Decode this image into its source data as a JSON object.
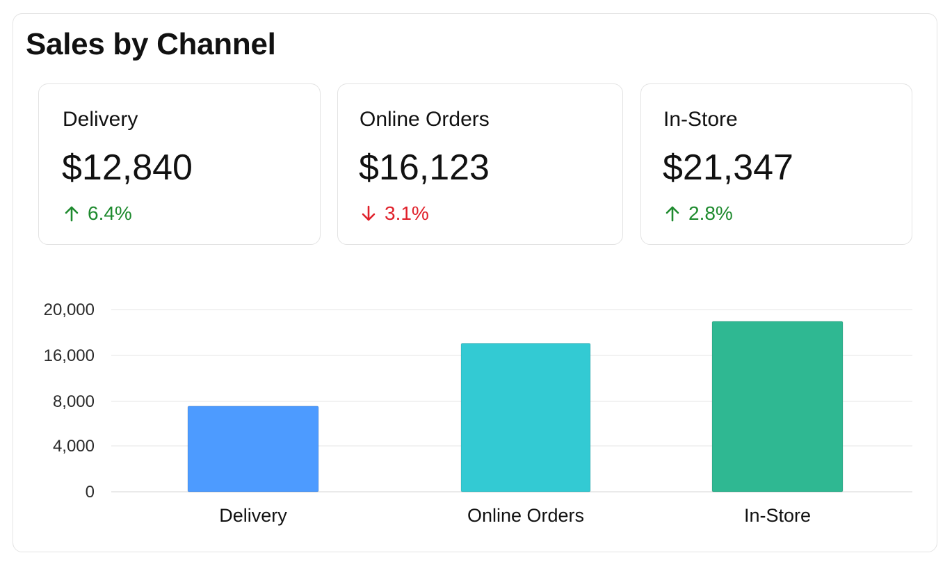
{
  "title": "Sales by Channel",
  "kpis": [
    {
      "label": "Delivery",
      "value": "$12,840",
      "change": "6.4%",
      "direction": "up",
      "color": "#1e8a2e"
    },
    {
      "label": "Online Orders",
      "value": "$16,123",
      "change": "3.1%",
      "direction": "down",
      "color": "#e0202a"
    },
    {
      "label": "In-Store",
      "value": "$21,347",
      "change": "2.8%",
      "direction": "up",
      "color": "#1e8a2e"
    }
  ],
  "chart_data": {
    "type": "bar",
    "categories": [
      "Delivery",
      "Online Orders",
      "In-Store"
    ],
    "values": [
      9400,
      16300,
      18700
    ],
    "yticks": [
      "0",
      "4,000",
      "8,000",
      "16,000",
      "20,000"
    ],
    "ylim": [
      0,
      20000
    ],
    "colors": [
      "#4d9bff",
      "#33cad3",
      "#2fb892"
    ],
    "grid": true,
    "legend": "none",
    "title": "",
    "xlabel": "",
    "ylabel": ""
  }
}
